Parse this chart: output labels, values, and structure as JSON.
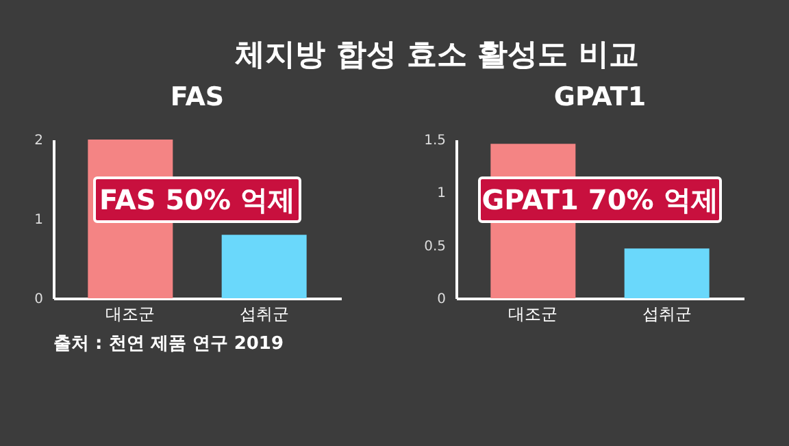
{
  "chart_data": [
    {
      "type": "other",
      "title": "체지방 합성 효소 활성도 비교",
      "annotations": [
        "출처 : 천연 제품 연구 2019"
      ]
    },
    {
      "type": "bar",
      "title": "FAS",
      "categories": [
        "대조군",
        "섭취군"
      ],
      "values": [
        2.0,
        0.8
      ],
      "colors": [
        "#f48484",
        "#6ad8fb"
      ],
      "ylim": [
        0,
        2
      ],
      "yticks": [
        0,
        1,
        2
      ],
      "grid": false,
      "annotations": [
        "FAS 50% 억제"
      ]
    },
    {
      "type": "bar",
      "title": "GPAT1",
      "categories": [
        "대조군",
        "섭취군"
      ],
      "values": [
        1.46,
        0.47
      ],
      "colors": [
        "#f48484",
        "#6ad8fb"
      ],
      "ylim": [
        0,
        1.5
      ],
      "yticks": [
        0,
        0.5,
        1,
        1.5
      ],
      "grid": false,
      "annotations": [
        "GPAT1 70% 억제"
      ]
    }
  ]
}
